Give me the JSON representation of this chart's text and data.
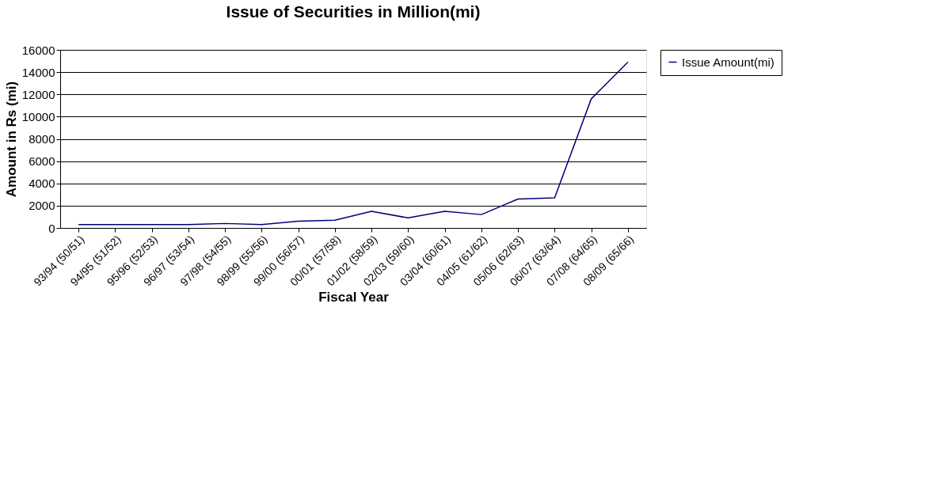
{
  "chart_data": {
    "type": "line",
    "title": "Issue of Securities in Million(mi)",
    "xlabel": "Fiscal Year",
    "ylabel": "Amount in Rs (mi)",
    "categories": [
      "93/94 (50/51)",
      "94/95 (51/52)",
      "95/96 (52/53)",
      "96/97 (53/54)",
      "97/98 (54/55)",
      "98/99 (55/56)",
      "99/00 (56/57)",
      "00/01 (57/58)",
      "01/02 (58/59)",
      "02/03 (59/60)",
      "03/04 (60/61)",
      "04/05 (61/62)",
      "05/06 (62/63)",
      "06/07 (63/64)",
      "07/08 (64/65)",
      "08/09 (65/66)"
    ],
    "series": [
      {
        "name": "Issue Amount(mi)",
        "color": "#000080",
        "values": [
          300,
          300,
          300,
          300,
          400,
          300,
          600,
          700,
          1500,
          900,
          1500,
          1200,
          2600,
          2700,
          11600,
          14900
        ]
      }
    ],
    "ylim": [
      0,
      16000
    ],
    "yticks": [
      0,
      2000,
      4000,
      6000,
      8000,
      10000,
      12000,
      14000,
      16000
    ],
    "grid": "y",
    "legend": "right",
    "marker": "none",
    "line_style": "solid"
  }
}
